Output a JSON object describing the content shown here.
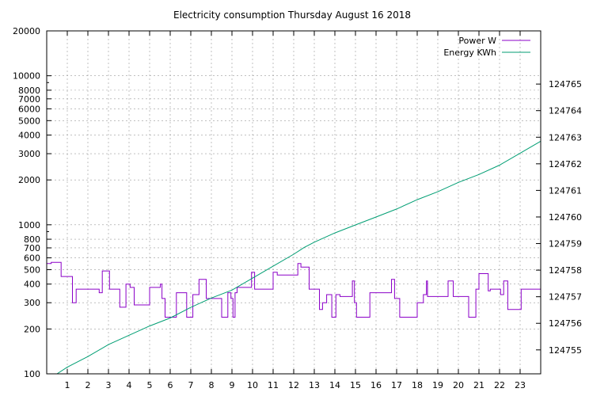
{
  "chart_data": {
    "type": "line",
    "title": "Electricity consumption Thursday August 16 2018",
    "xlabel": "",
    "ylabel": "",
    "x_range": [
      0,
      24
    ],
    "x_ticks": [
      "1",
      "2",
      "3",
      "4",
      "5",
      "6",
      "7",
      "8",
      "9",
      "10",
      "11",
      "12",
      "13",
      "14",
      "15",
      "16",
      "17",
      "18",
      "19",
      "20",
      "21",
      "22",
      "23"
    ],
    "y_left": {
      "scale": "log",
      "range": [
        100,
        20000
      ],
      "tick_values": [
        100,
        200,
        300,
        400,
        500,
        600,
        700,
        800,
        1000,
        2000,
        3000,
        4000,
        5000,
        6000,
        7000,
        8000,
        10000,
        20000
      ],
      "tick_labels": [
        "100",
        "200",
        "300",
        "400",
        "500",
        "600",
        "700",
        "800",
        "1000",
        "2000",
        "3000",
        "4000",
        "5000",
        "6000",
        "7000",
        "8000",
        "10000",
        "20000"
      ]
    },
    "y_right": {
      "scale": "linear",
      "range": [
        124754.1,
        124767.0
      ],
      "tick_values": [
        124755,
        124756,
        124757,
        124758,
        124759,
        124760,
        124761,
        124762,
        124763,
        124764,
        124765
      ],
      "tick_labels": [
        "124755",
        "124756",
        "124757",
        "124758",
        "124759",
        "124760",
        "124761",
        "124762",
        "124763",
        "124764",
        "124765"
      ]
    },
    "grid": true,
    "legend_position": "top-right",
    "series": [
      {
        "name": "Power W",
        "axis": "left",
        "color": "#8b00c8",
        "step": true,
        "x": [
          0,
          0.22,
          0.25,
          0.7,
          1.25,
          1.43,
          1.55,
          2.55,
          2.7,
          3.05,
          3.55,
          3.85,
          4.05,
          4.25,
          4.35,
          5.0,
          5.35,
          5.52,
          5.6,
          5.75,
          6.3,
          6.8,
          7.1,
          7.4,
          7.75,
          8.5,
          8.8,
          8.95,
          9.05,
          9.15,
          9.25,
          9.95,
          10.1,
          10.35,
          11.0,
          11.2,
          12.2,
          12.35,
          12.75,
          13.25,
          13.4,
          13.6,
          13.85,
          14.05,
          14.25,
          14.85,
          14.95,
          15.05,
          15.1,
          15.7,
          16.0,
          16.75,
          16.9,
          17.15,
          17.35,
          18.0,
          18.3,
          18.45,
          18.5,
          19.25,
          19.5,
          19.75,
          20.5,
          20.55,
          20.85,
          21.0,
          21.45,
          21.55,
          22.05,
          22.2,
          22.4,
          23.05,
          24.0
        ],
        "y": [
          550,
          560,
          560,
          450,
          300,
          370,
          370,
          350,
          490,
          370,
          280,
          400,
          380,
          290,
          290,
          380,
          380,
          400,
          320,
          240,
          350,
          240,
          340,
          430,
          320,
          240,
          350,
          320,
          240,
          350,
          380,
          480,
          370,
          370,
          480,
          460,
          550,
          520,
          370,
          270,
          300,
          340,
          240,
          340,
          330,
          420,
          300,
          240,
          240,
          350,
          350,
          430,
          320,
          240,
          240,
          300,
          340,
          420,
          330,
          330,
          420,
          330,
          240,
          240,
          370,
          470,
          360,
          370,
          340,
          420,
          270,
          370,
          490
        ]
      },
      {
        "name": "Energy KWh",
        "axis": "right",
        "color": "#009e73",
        "step": false,
        "x": [
          0.5,
          1,
          2,
          3,
          4,
          5,
          6,
          7,
          8,
          9,
          10,
          11,
          12,
          12.5,
          13,
          14,
          15,
          16,
          17,
          18,
          19,
          20,
          21,
          22,
          23,
          24
        ],
        "y": [
          124754.1,
          124754.35,
          124754.75,
          124755.2,
          124755.55,
          124755.9,
          124756.2,
          124756.6,
          124756.95,
          124757.25,
          124757.7,
          124758.15,
          124758.6,
          124758.85,
          124759.05,
          124759.4,
          124759.7,
          124760.0,
          124760.3,
          124760.65,
          124760.95,
          124761.3,
          124761.6,
          124761.95,
          124762.4,
          124762.85
        ]
      }
    ]
  }
}
